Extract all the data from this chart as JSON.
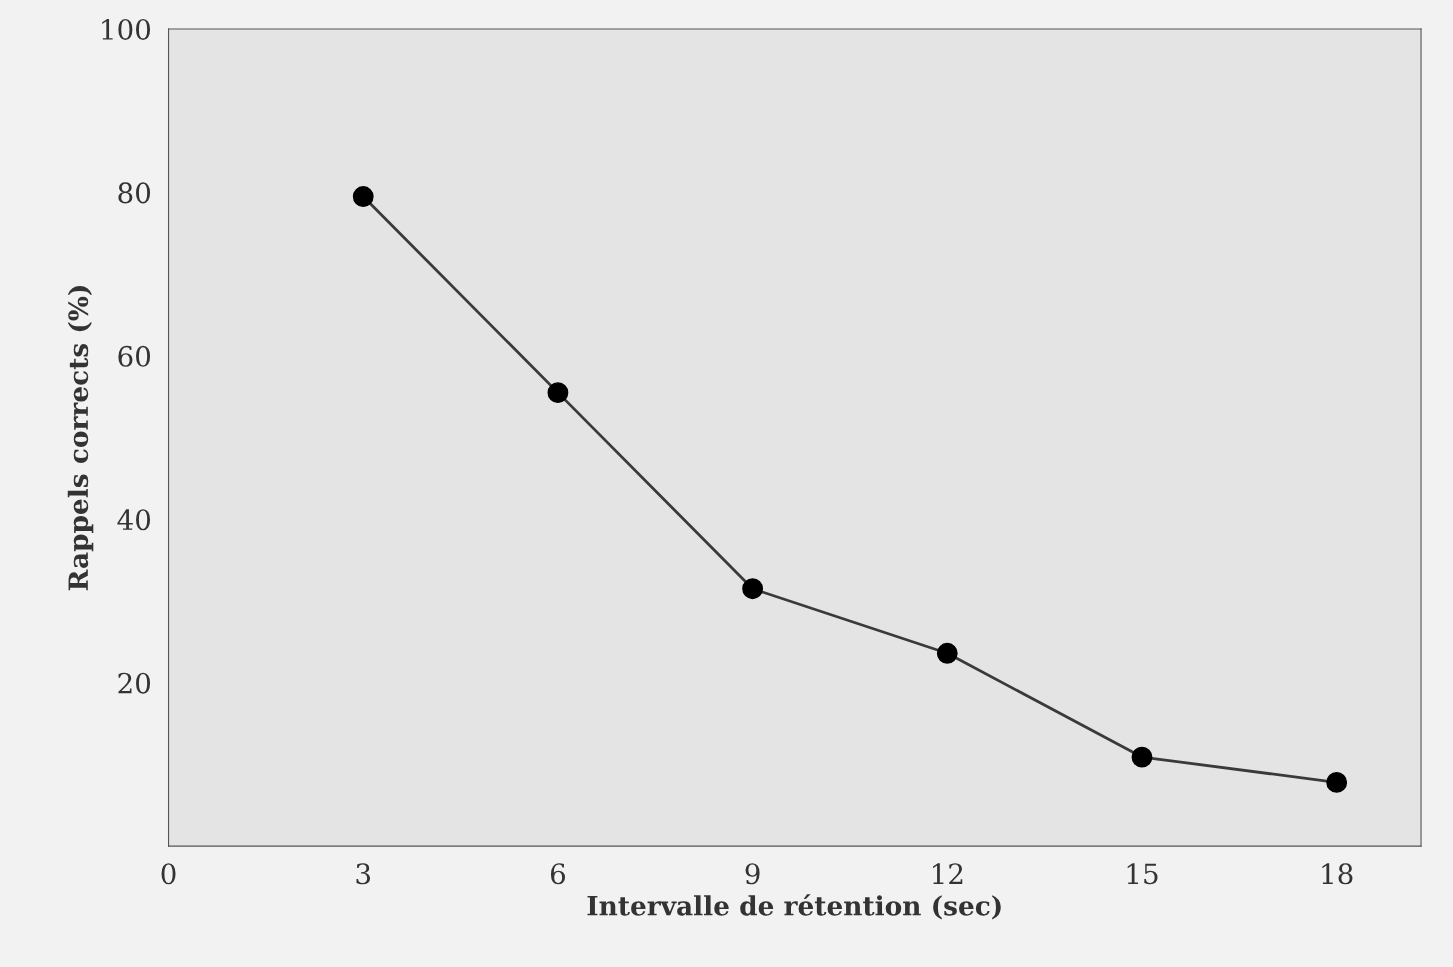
{
  "chart_data": {
    "type": "line",
    "xlabel": "Intervalle de rétention (sec)",
    "ylabel": "Rappels corrects (%)",
    "x": [
      3,
      6,
      9,
      12,
      15,
      18
    ],
    "series": [
      {
        "color": "#3a3a3a",
        "values": [
          79.5,
          55.5,
          31.5,
          23.6,
          10.9,
          7.8
        ]
      }
    ],
    "marker": "circle",
    "line_style": "solid",
    "grid": false,
    "xlim": [
      0,
      19.3
    ],
    "xticks": [
      0,
      3,
      6,
      9,
      12,
      15,
      18
    ],
    "ylim": [
      0,
      100
    ],
    "yticks": [
      20,
      40,
      60,
      80,
      100
    ]
  }
}
